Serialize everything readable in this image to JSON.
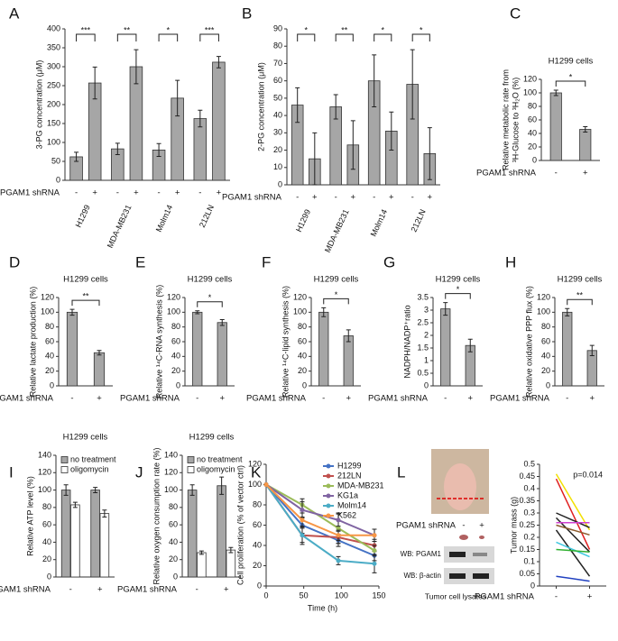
{
  "chart_data": [
    {
      "type": "bar",
      "panel": "A",
      "ylabel": "3-PG concentration (μM)",
      "categories": [
        "H1299",
        "MDA-MB231",
        "Molm14",
        "212LN"
      ],
      "series": [
        {
          "name": "-",
          "color": "#a6a6a6",
          "values": [
            62,
            83,
            80,
            163
          ],
          "errors": [
            12,
            15,
            17,
            22
          ]
        },
        {
          "name": "+",
          "color": "#a6a6a6",
          "values": [
            257,
            300,
            217,
            312
          ],
          "errors": [
            42,
            45,
            47,
            15
          ]
        }
      ],
      "ylim": [
        0,
        400
      ],
      "yticks": [
        0,
        50,
        100,
        150,
        200,
        250,
        300,
        350,
        400
      ],
      "significance": [
        "***",
        "**",
        "*",
        "***"
      ],
      "condition_label": "PGAM1 shRNA"
    },
    {
      "type": "bar",
      "panel": "B",
      "ylabel": "2-PG concentration (μM)",
      "categories": [
        "H1299",
        "MDA-MB231",
        "Molm14",
        "212LN"
      ],
      "series": [
        {
          "name": "-",
          "color": "#a6a6a6",
          "values": [
            46,
            45,
            60,
            58
          ],
          "errors": [
            10,
            7,
            15,
            20
          ]
        },
        {
          "name": "+",
          "color": "#a6a6a6",
          "values": [
            15,
            23,
            31,
            18
          ],
          "errors": [
            15,
            14,
            11,
            15
          ]
        }
      ],
      "ylim": [
        0,
        90
      ],
      "yticks": [
        0,
        10,
        20,
        30,
        40,
        50,
        60,
        70,
        80,
        90
      ],
      "significance": [
        "*",
        "**",
        "*",
        "*"
      ],
      "condition_label": "PGAM1 shRNA"
    },
    {
      "type": "bar",
      "panel": "C",
      "title": "H1299 cells",
      "ylabel": [
        "Relative metabolic rate from",
        "³H-Glucose to ³H₂O (%)"
      ],
      "categories": [
        "-",
        "+"
      ],
      "values": [
        100,
        46
      ],
      "errors": [
        4,
        4
      ],
      "color": "#a6a6a6",
      "ylim": [
        0,
        120
      ],
      "yticks": [
        0,
        20,
        40,
        60,
        80,
        100,
        120
      ],
      "significance": "*",
      "condition_label": "PGAM1 shRNA"
    },
    {
      "type": "bar",
      "panel": "D",
      "title": "H1299 cells",
      "ylabel": "Relative lactate production (%)",
      "categories": [
        "-",
        "+"
      ],
      "values": [
        100,
        45
      ],
      "errors": [
        4,
        3
      ],
      "color": "#a6a6a6",
      "ylim": [
        0,
        120
      ],
      "yticks": [
        0,
        20,
        40,
        60,
        80,
        100,
        120
      ],
      "significance": "**",
      "condition_label": "PGAM1 shRNA"
    },
    {
      "type": "bar",
      "panel": "E",
      "title": "H1299 cells",
      "ylabel": "Relative ¹⁴C-RNA synthesis (%)",
      "categories": [
        "-",
        "+"
      ],
      "values": [
        100,
        86
      ],
      "errors": [
        2,
        4
      ],
      "color": "#a6a6a6",
      "ylim": [
        0,
        120
      ],
      "yticks": [
        0,
        20,
        40,
        60,
        80,
        100,
        120
      ],
      "significance": "*",
      "condition_label": "PGAM1 shRNA"
    },
    {
      "type": "bar",
      "panel": "F",
      "title": "H1299 cells",
      "ylabel": "Relative ¹⁴C-lipid synthesis (%)",
      "categories": [
        "-",
        "+"
      ],
      "values": [
        100,
        68
      ],
      "errors": [
        6,
        8
      ],
      "color": "#a6a6a6",
      "ylim": [
        0,
        120
      ],
      "yticks": [
        0,
        20,
        40,
        60,
        80,
        100,
        120
      ],
      "significance": "*",
      "condition_label": "PGAM1 shRNA"
    },
    {
      "type": "bar",
      "panel": "G",
      "title": "H1299 cells",
      "ylabel": "NADPH/NADP⁺ratio",
      "categories": [
        "-",
        "+"
      ],
      "values": [
        3.05,
        1.6
      ],
      "errors": [
        0.25,
        0.25
      ],
      "color": "#a6a6a6",
      "ylim": [
        0,
        3.5
      ],
      "yticks": [
        0,
        0.5,
        1,
        1.5,
        2,
        2.5,
        3,
        3.5
      ],
      "significance": "*",
      "condition_label": "PGAM1 shRNA"
    },
    {
      "type": "bar",
      "panel": "H",
      "title": "H1299 cells",
      "ylabel": "Relative oxidative PPP flux (%)",
      "categories": [
        "-",
        "+"
      ],
      "values": [
        100,
        48
      ],
      "errors": [
        5,
        7
      ],
      "color": "#a6a6a6",
      "ylim": [
        0,
        120
      ],
      "yticks": [
        0,
        20,
        40,
        60,
        80,
        100,
        120
      ],
      "significance": "**",
      "condition_label": "PGAM1 shRNA"
    },
    {
      "type": "bar",
      "panel": "I",
      "title": "H1299 cells",
      "ylabel": "Relative ATP level (%)",
      "categories": [
        "-",
        "+"
      ],
      "legend": "upper left",
      "series": [
        {
          "name": "no treatment",
          "color": "#a6a6a6",
          "values": [
            100,
            100
          ],
          "errors": [
            6,
            3
          ]
        },
        {
          "name": "oligomycin",
          "color": "#ffffff",
          "values": [
            83,
            73
          ],
          "errors": [
            3,
            4
          ]
        }
      ],
      "ylim": [
        0,
        140
      ],
      "yticks": [
        0,
        20,
        40,
        60,
        80,
        100,
        120,
        140
      ],
      "condition_label": "PGAM1 shRNA"
    },
    {
      "type": "bar",
      "panel": "J",
      "title": "H1299 cells",
      "ylabel": "Relative oxygen consumption rate (%)",
      "categories": [
        "-",
        "+"
      ],
      "legend": "upper left",
      "series": [
        {
          "name": "no treatment",
          "color": "#a6a6a6",
          "values": [
            100,
            105
          ],
          "errors": [
            6,
            10
          ]
        },
        {
          "name": "oligomycin",
          "color": "#ffffff",
          "values": [
            28,
            31
          ],
          "errors": [
            2,
            3
          ]
        }
      ],
      "ylim": [
        0,
        140
      ],
      "yticks": [
        0,
        20,
        40,
        60,
        80,
        100,
        120,
        140
      ],
      "condition_label": "PGAM1 shRNA"
    },
    {
      "type": "line",
      "panel": "K",
      "xlabel": "Time (h)",
      "ylabel": "Cell proliferation (% of vector ctrl)",
      "x": [
        0,
        48,
        96,
        144
      ],
      "xlim": [
        0,
        150
      ],
      "xticks": [
        0,
        50,
        100,
        150
      ],
      "ylim": [
        0,
        120
      ],
      "yticks": [
        0,
        20,
        40,
        60,
        80,
        100,
        120
      ],
      "legend": "upper right",
      "series": [
        {
          "name": "H1299",
          "color": "#4472c4",
          "values": [
            100,
            60,
            45,
            30
          ],
          "errors": [
            0,
            8,
            6,
            5
          ]
        },
        {
          "name": "212LN",
          "color": "#c0504d",
          "values": [
            100,
            50,
            48,
            40
          ],
          "errors": [
            0,
            7,
            6,
            6
          ]
        },
        {
          "name": "MDA-MB231",
          "color": "#9bbb59",
          "values": [
            100,
            80,
            57,
            35
          ],
          "errors": [
            0,
            6,
            15,
            5
          ]
        },
        {
          "name": "KG1a",
          "color": "#8064a2",
          "values": [
            100,
            75,
            65,
            50
          ],
          "errors": [
            0,
            8,
            6,
            6
          ]
        },
        {
          "name": "Molm14",
          "color": "#4bacc6",
          "values": [
            100,
            50,
            25,
            22
          ],
          "errors": [
            0,
            9,
            4,
            9
          ]
        },
        {
          "name": "K562",
          "color": "#f79646",
          "values": [
            100,
            65,
            50,
            50
          ],
          "errors": [
            0,
            7,
            5,
            6
          ]
        }
      ]
    },
    {
      "type": "slope",
      "panel": "L",
      "ylabel": "Tumor mass (g)",
      "categories": [
        "-",
        "+"
      ],
      "annotation": "p=0.014",
      "condition_label": "PGAM1 shRNA",
      "ylim": [
        0,
        0.5
      ],
      "yticks": [
        0,
        0.05,
        0.1,
        0.15,
        0.2,
        0.25,
        0.3,
        0.35,
        0.4,
        0.45,
        0.5
      ],
      "series": [
        {
          "color": "#f2e000",
          "values": [
            0.46,
            0.23
          ]
        },
        {
          "color": "#e02020",
          "values": [
            0.44,
            0.15
          ]
        },
        {
          "color": "#222222",
          "values": [
            0.3,
            0.24
          ]
        },
        {
          "color": "#222222",
          "values": [
            0.28,
            0.14
          ]
        },
        {
          "color": "#222222",
          "values": [
            0.23,
            0.04
          ]
        },
        {
          "color": "#d040d0",
          "values": [
            0.26,
            0.26
          ]
        },
        {
          "color": "#8b5a2b",
          "values": [
            0.25,
            0.21
          ]
        },
        {
          "color": "#40c8e0",
          "values": [
            0.18,
            0.12
          ]
        },
        {
          "color": "#30b030",
          "values": [
            0.15,
            0.14
          ]
        },
        {
          "color": "#2040c0",
          "values": [
            0.04,
            0.02
          ]
        }
      ],
      "image_labels": {
        "condition_label": "PGAM1 shRNA",
        "signs": [
          "-",
          "+"
        ],
        "blots": [
          "WB: PGAM1",
          "WB: β-actin"
        ],
        "caption": "Tumor cell lysates"
      }
    }
  ]
}
